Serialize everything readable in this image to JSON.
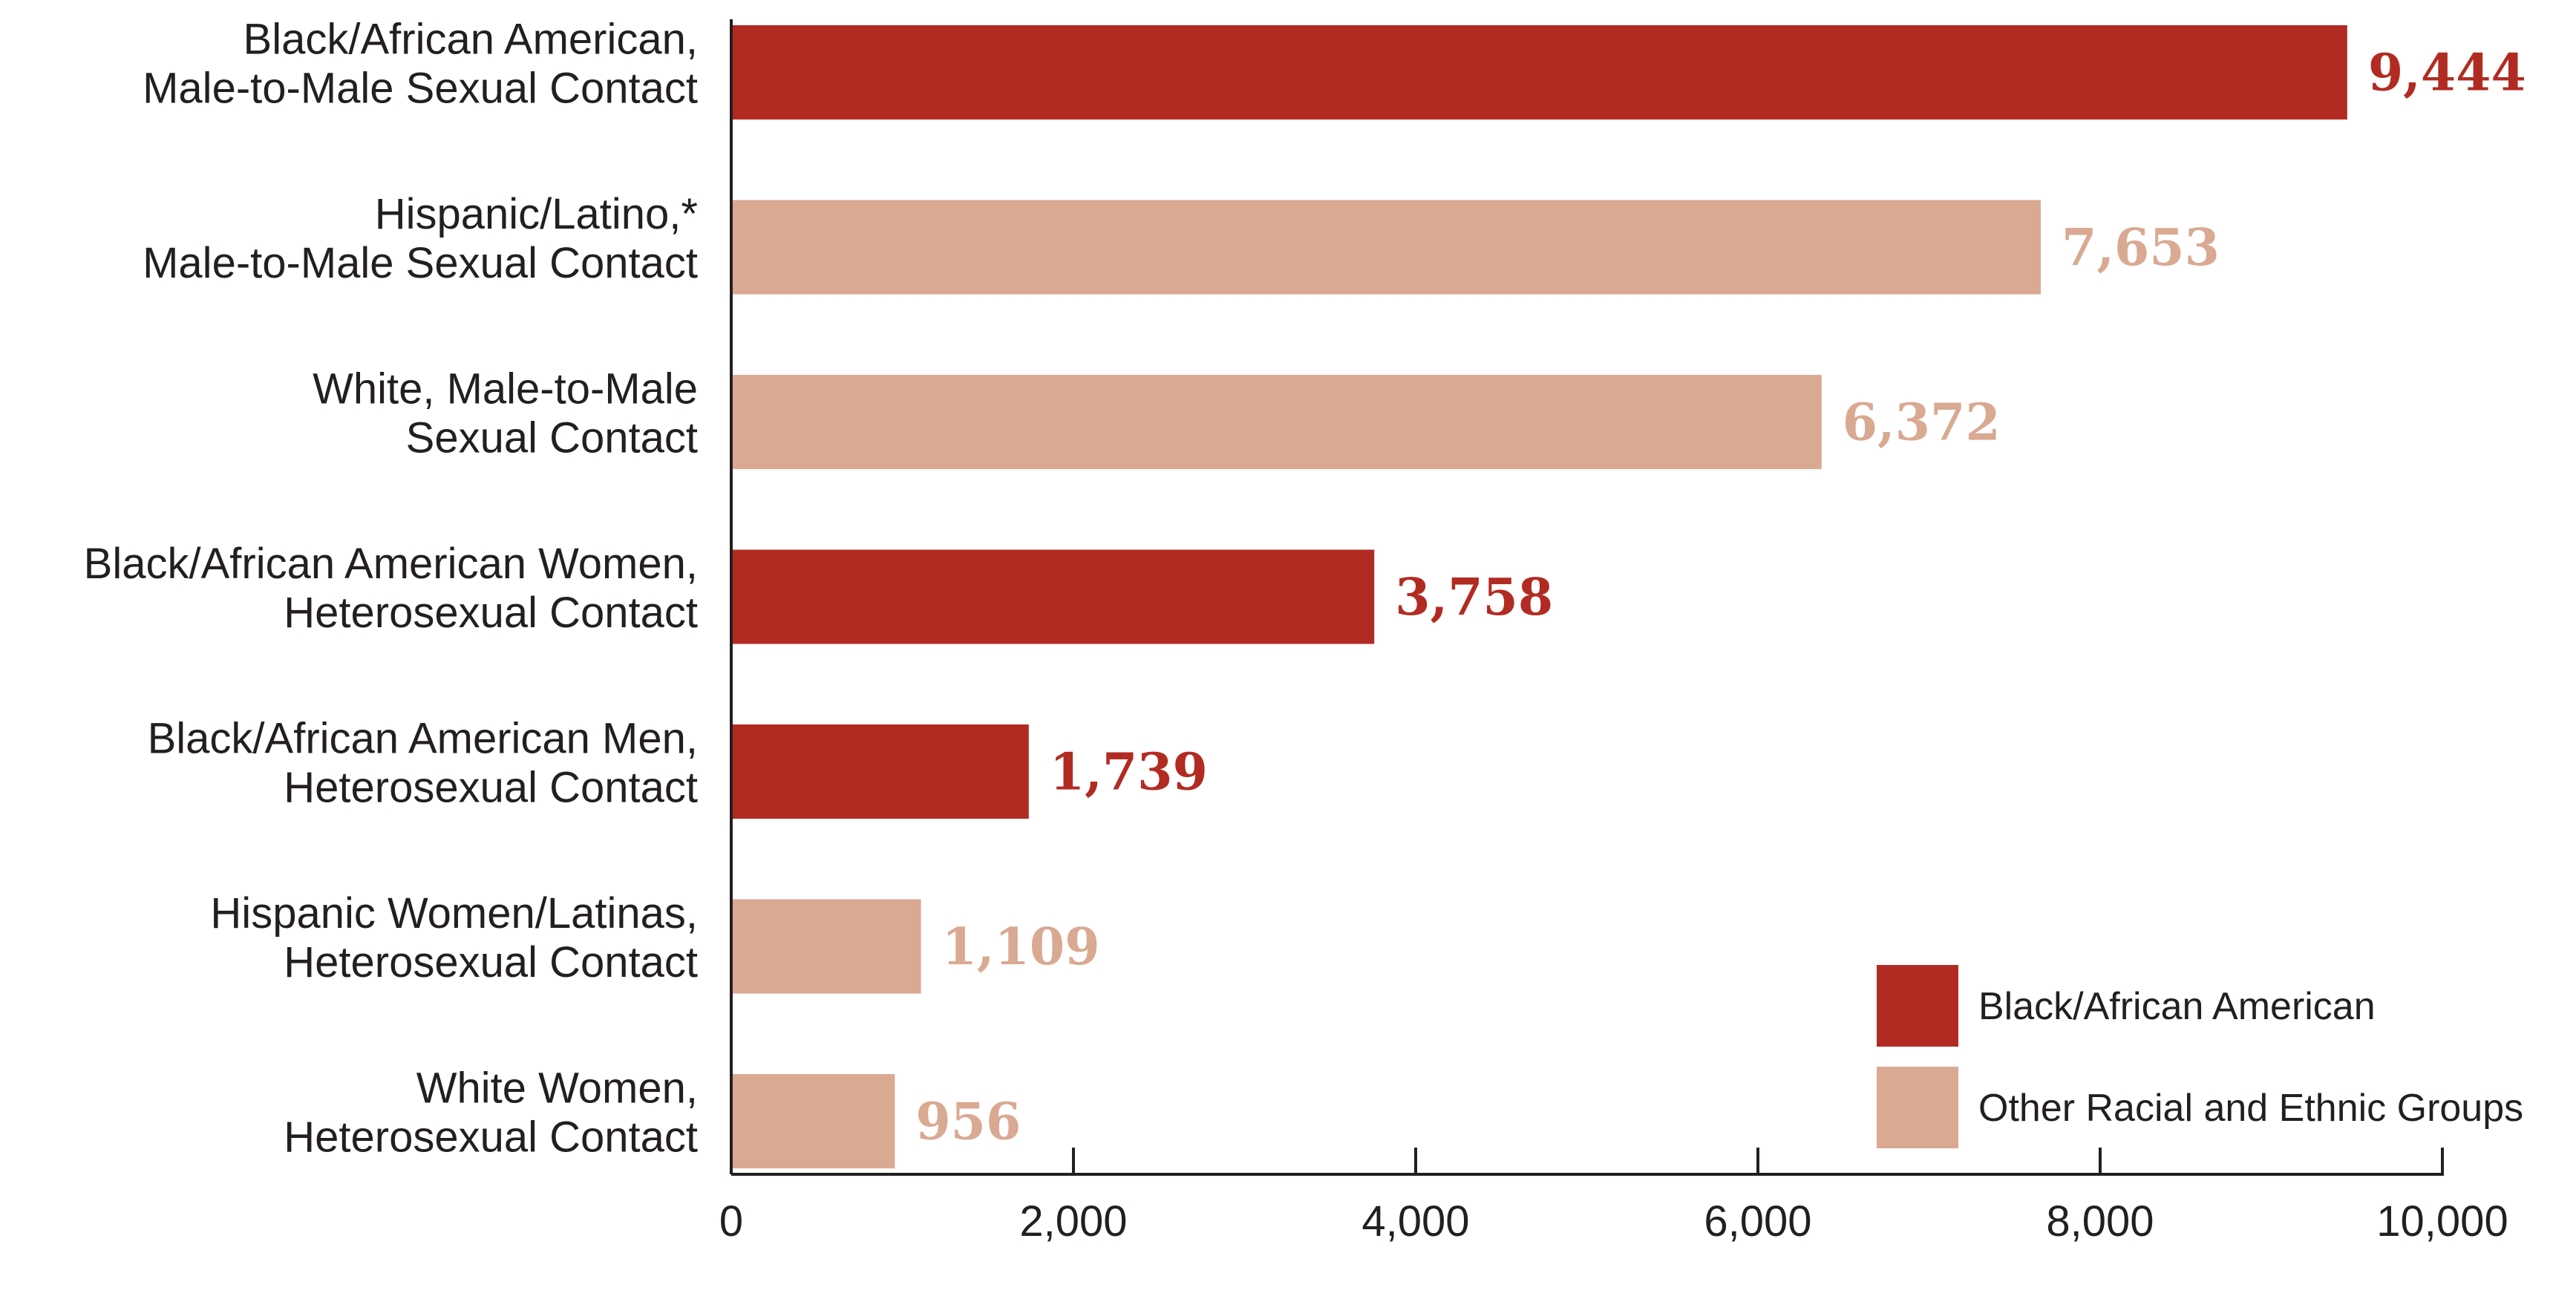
{
  "chart_data": {
    "type": "bar",
    "orientation": "horizontal",
    "categories": [
      [
        "Black/African American,",
        "Male-to-Male Sexual Contact"
      ],
      [
        "Hispanic/Latino,*",
        "Male-to-Male Sexual Contact"
      ],
      [
        "White, Male-to-Male",
        "Sexual Contact"
      ],
      [
        "Black/African American Women,",
        "Heterosexual Contact"
      ],
      [
        "Black/African American Men,",
        "Heterosexual Contact"
      ],
      [
        "Hispanic Women/Latinas,",
        "Heterosexual Contact"
      ],
      [
        "White Women,",
        "Heterosexual Contact"
      ]
    ],
    "values": [
      9444,
      7653,
      6372,
      3758,
      1739,
      1109,
      956
    ],
    "value_labels": [
      "9,444",
      "7,653",
      "6,372",
      "3,758",
      "1,739",
      "1,109",
      "956"
    ],
    "groups": [
      0,
      1,
      1,
      0,
      0,
      1,
      1
    ],
    "xlim": [
      0,
      10000
    ],
    "xticks": [
      0,
      2000,
      4000,
      6000,
      8000,
      10000
    ],
    "xtick_labels": [
      "0",
      "2,000",
      "4,000",
      "6,000",
      "8,000",
      "10,000"
    ],
    "grid": false,
    "legend": {
      "placement": "bottom-right",
      "entries": [
        {
          "label": "Black/African American",
          "color": "#b22b22"
        },
        {
          "label": "Other Racial and Ethnic Groups",
          "color": "#d9a992"
        }
      ]
    },
    "colors": {
      "group0_bar": "#b22b22",
      "group0_label": "#b22b22",
      "group1_bar": "#d9a992",
      "group1_label": "#d9a992",
      "axis": "#231f20"
    }
  }
}
